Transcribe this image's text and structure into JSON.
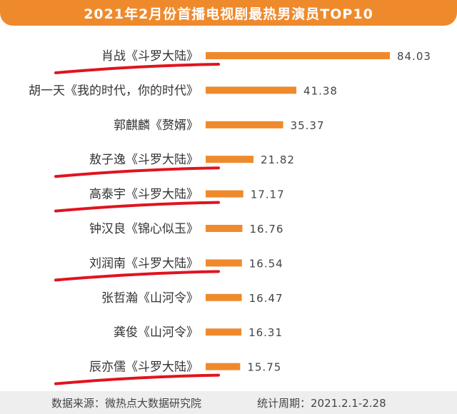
{
  "header": {
    "title": "2021年2月份首播电视剧最热男演员TOP10"
  },
  "chart_data": {
    "type": "bar",
    "orientation": "horizontal",
    "title": "2021年2月份首播电视剧最热男演员TOP10",
    "categories": [
      "肖战《斗罗大陆》",
      "胡一天《我的时代，你的时代》",
      "郭麒麟《赘婿》",
      "敖子逸《斗罗大陆》",
      "高泰宇《斗罗大陆》",
      "钟汉良《锦心似玉》",
      "刘润南《斗罗大陆》",
      "张哲瀚《山河令》",
      "龚俊《山河令》",
      "辰亦儒《斗罗大陆》"
    ],
    "values": [
      84.03,
      41.38,
      35.37,
      21.82,
      17.17,
      16.76,
      16.54,
      16.47,
      16.31,
      15.75
    ],
    "value_labels": [
      "84.03",
      "41.38",
      "35.37",
      "21.82",
      "17.17",
      "16.76",
      "16.54",
      "16.47",
      "16.31",
      "15.75"
    ],
    "annotations": {
      "underlined_rows": [
        0,
        3,
        4,
        6,
        9
      ],
      "color": "#e0141e"
    },
    "bar_color": "#ef8a2c",
    "grid": false,
    "legend": "none"
  },
  "footer": {
    "source": "数据来源：微热点大数据研究院",
    "period": "统计周期：2021.2.1-2.28"
  },
  "colors": {
    "accent": "#ef8a2c",
    "annotation": "#e0141e"
  }
}
